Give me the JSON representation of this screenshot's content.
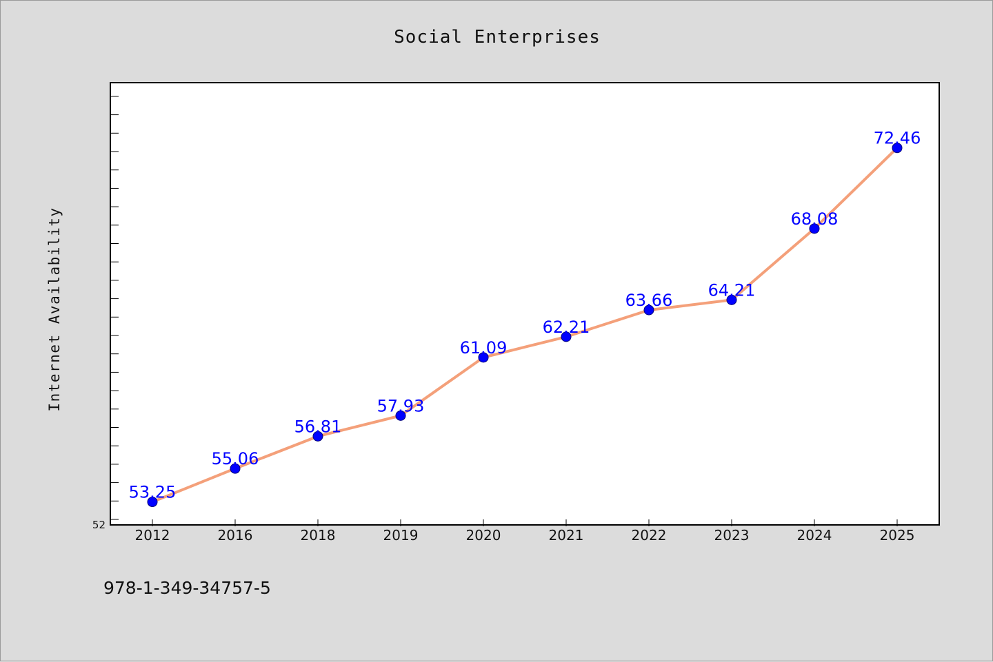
{
  "chart_data": {
    "type": "line",
    "title": "Social Enterprises",
    "xlabel": "",
    "ylabel": "Internet Availability",
    "categories": [
      "2012",
      "2016",
      "2018",
      "2019",
      "2020",
      "2021",
      "2022",
      "2023",
      "2024",
      "2025"
    ],
    "series": [
      {
        "values": [
          53.25,
          55.06,
          56.81,
          57.93,
          61.09,
          62.21,
          63.66,
          64.21,
          68.08,
          72.46
        ]
      }
    ],
    "data_labels": [
      "53.25",
      "55.06",
      "56.81",
      "57.93",
      "61.09",
      "62.21",
      "63.66",
      "64.21",
      "68.08",
      "72.46"
    ],
    "ylim": [
      52,
      76
    ],
    "ytick_labels": [
      "52"
    ],
    "grid": false,
    "line_color": "#f4a07a",
    "marker_color": "#0000ff",
    "label_color": "#0000ff"
  },
  "footnote": "978-1-349-34757-5"
}
